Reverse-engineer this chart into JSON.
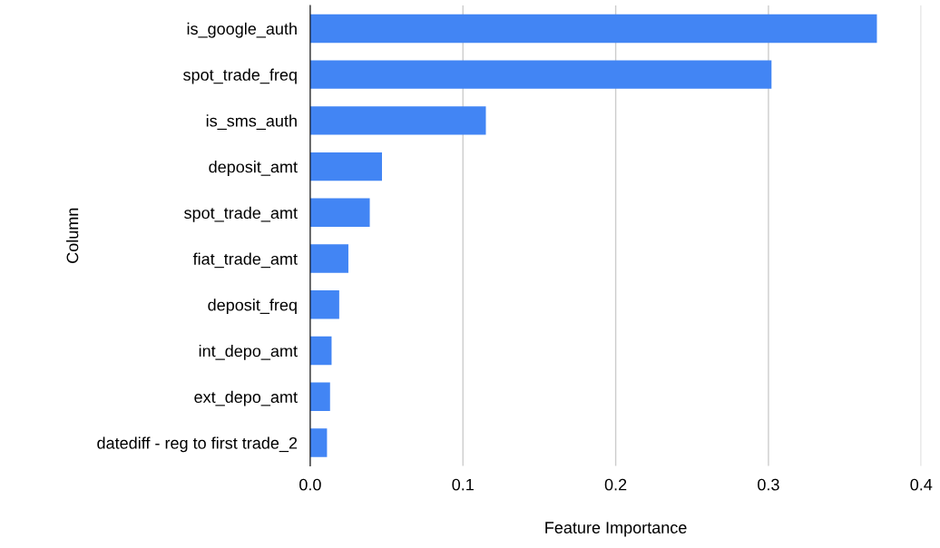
{
  "chart_data": {
    "type": "bar",
    "orientation": "horizontal",
    "xlabel": "Feature Importance",
    "ylabel": "Column",
    "categories": [
      "is_google_auth",
      "spot_trade_freq",
      "is_sms_auth",
      "deposit_amt",
      "spot_trade_amt",
      "fiat_trade_amt",
      "deposit_freq",
      "int_depo_amt",
      "ext_depo_amt",
      "datediff - reg to first trade_2"
    ],
    "values": [
      0.371,
      0.302,
      0.115,
      0.047,
      0.039,
      0.025,
      0.019,
      0.014,
      0.013,
      0.011
    ],
    "color": "#4285f4",
    "xlim": [
      0,
      0.4
    ],
    "xticks": [
      {
        "value": 0,
        "label": "0.0"
      },
      0.1,
      0.2,
      0.3,
      0.4
    ],
    "grid": "x"
  }
}
